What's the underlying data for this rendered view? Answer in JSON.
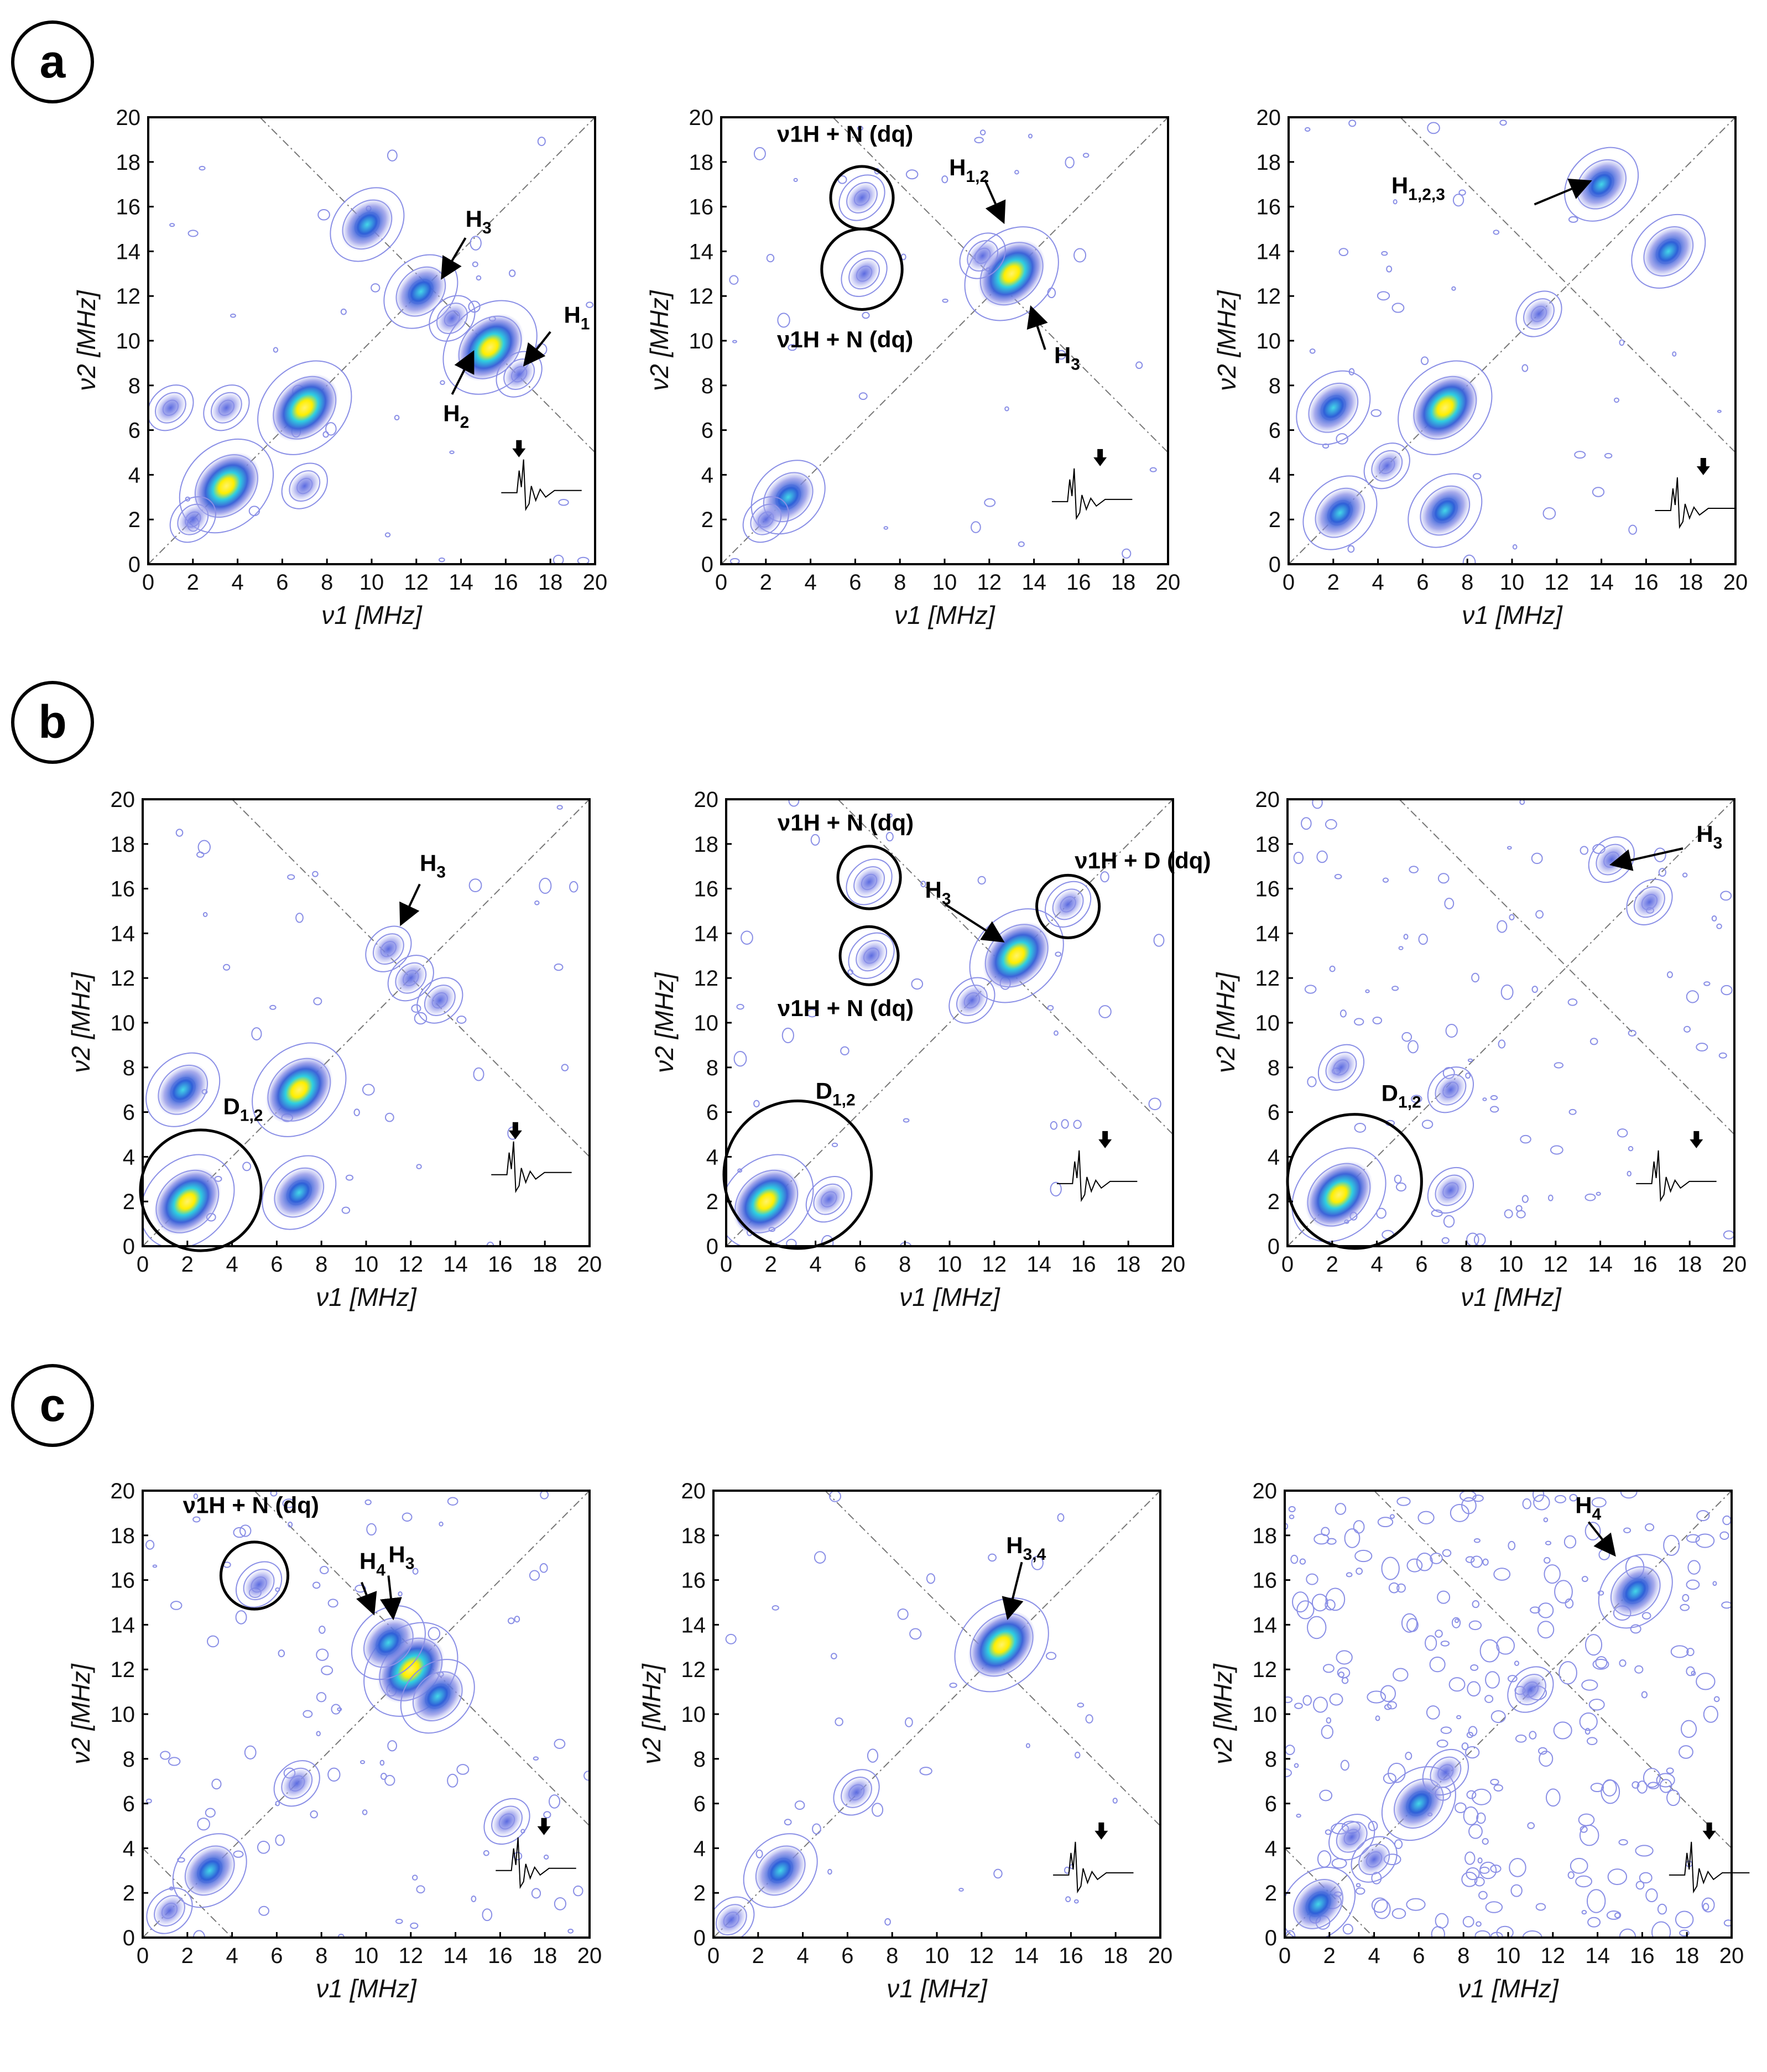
{
  "panel_labels": [
    "a",
    "b",
    "c"
  ],
  "colors": {
    "contour_outer": "#8a8fe6",
    "contour_mid": "#4f5fd6",
    "hot_cyan": "#2fd0e0",
    "hot_yellow": "#fff200",
    "axis": "#000000",
    "diag": "#666666"
  },
  "chart_data": [
    {
      "id": "a1",
      "type": "contour",
      "xlabel": "ν1 [MHz]",
      "ylabel": "ν2 [MHz]",
      "xlim": [
        0,
        20
      ],
      "ylim": [
        0,
        20
      ],
      "xticks": [
        "0",
        "2",
        "4",
        "6",
        "8",
        "10",
        "12",
        "14",
        "16",
        "18",
        "20"
      ],
      "yticks": [
        "0",
        "2",
        "4",
        "6",
        "8",
        "10",
        "12",
        "14",
        "16",
        "18",
        "20"
      ],
      "peaks": [
        {
          "x": 3.5,
          "y": 3.5,
          "i": 3
        },
        {
          "x": 7,
          "y": 7,
          "i": 3
        },
        {
          "x": 2,
          "y": 2,
          "i": 1
        },
        {
          "x": 3.5,
          "y": 7,
          "i": 1
        },
        {
          "x": 7,
          "y": 3.5,
          "i": 1
        },
        {
          "x": 1,
          "y": 7,
          "i": 1
        },
        {
          "x": 9.8,
          "y": 15.2,
          "i": 2
        },
        {
          "x": 12.2,
          "y": 12.2,
          "i": 2
        },
        {
          "x": 13.6,
          "y": 11,
          "i": 1
        },
        {
          "x": 15.3,
          "y": 9.7,
          "i": 3
        },
        {
          "x": 16.6,
          "y": 8.5,
          "i": 1
        }
      ],
      "annotations": [
        {
          "text": "H",
          "sub": "3",
          "x": 14.2,
          "y": 15.1
        },
        {
          "text": "H",
          "sub": "1",
          "x": 18.6,
          "y": 10.8
        },
        {
          "text": "H",
          "sub": "2",
          "x": 13.2,
          "y": 6.4
        }
      ]
    },
    {
      "id": "a2",
      "type": "contour",
      "xlabel": "ν1 [MHz]",
      "ylabel": "ν2 [MHz]",
      "xlim": [
        0,
        20
      ],
      "ylim": [
        0,
        20
      ],
      "xticks": [
        "0",
        "2",
        "4",
        "6",
        "8",
        "10",
        "12",
        "14",
        "16",
        "18",
        "20"
      ],
      "yticks": [
        "0",
        "2",
        "4",
        "6",
        "8",
        "10",
        "12",
        "14",
        "16",
        "18",
        "20"
      ],
      "peaks": [
        {
          "x": 13,
          "y": 13,
          "i": 3
        },
        {
          "x": 3,
          "y": 3,
          "i": 2
        },
        {
          "x": 2,
          "y": 2,
          "i": 1
        },
        {
          "x": 6.3,
          "y": 16.4,
          "i": 1
        },
        {
          "x": 6.4,
          "y": 13,
          "i": 1
        },
        {
          "x": 11.7,
          "y": 13.8,
          "i": 1
        }
      ],
      "annotations": [
        {
          "text": "ν1H + N (dq)",
          "sub": "",
          "x": 2.5,
          "y": 18.9
        },
        {
          "text": "H",
          "sub": "1,2",
          "x": 10.2,
          "y": 17.4
        },
        {
          "text": "ν1H + N (dq)",
          "sub": "",
          "x": 2.5,
          "y": 9.7
        },
        {
          "text": "H",
          "sub": "3",
          "x": 14.9,
          "y": 9.0
        }
      ]
    },
    {
      "id": "a3",
      "type": "contour",
      "xlabel": "ν1 [MHz]",
      "ylabel": "ν2 [MHz]",
      "xlim": [
        0,
        20
      ],
      "ylim": [
        0,
        20
      ],
      "xticks": [
        "0",
        "2",
        "4",
        "6",
        "8",
        "10",
        "12",
        "14",
        "16",
        "18",
        "20"
      ],
      "yticks": [
        "0",
        "2",
        "4",
        "6",
        "8",
        "10",
        "12",
        "14",
        "16",
        "18",
        "20"
      ],
      "peaks": [
        {
          "x": 7,
          "y": 7,
          "i": 3
        },
        {
          "x": 2,
          "y": 7,
          "i": 2
        },
        {
          "x": 2.3,
          "y": 2.3,
          "i": 2
        },
        {
          "x": 4.4,
          "y": 4.4,
          "i": 1
        },
        {
          "x": 7,
          "y": 2.4,
          "i": 2
        },
        {
          "x": 14,
          "y": 17,
          "i": 2
        },
        {
          "x": 17,
          "y": 14,
          "i": 2
        },
        {
          "x": 11.2,
          "y": 11.2,
          "i": 1
        }
      ],
      "annotations": [
        {
          "text": "H",
          "sub": "1,2,3",
          "x": 4.6,
          "y": 16.6
        }
      ]
    },
    {
      "id": "b1",
      "type": "contour",
      "xlabel": "ν1 [MHz]",
      "ylabel": "ν2 [MHz]",
      "xlim": [
        0,
        20
      ],
      "ylim": [
        0,
        20
      ],
      "xticks": [
        "0",
        "2",
        "4",
        "6",
        "8",
        "10",
        "12",
        "14",
        "16",
        "18",
        "20"
      ],
      "yticks": [
        "0",
        "2",
        "4",
        "6",
        "8",
        "10",
        "12",
        "14",
        "16",
        "18",
        "20"
      ],
      "peaks": [
        {
          "x": 2,
          "y": 2,
          "i": 3
        },
        {
          "x": 7,
          "y": 7,
          "i": 3
        },
        {
          "x": 1.8,
          "y": 7,
          "i": 2
        },
        {
          "x": 7,
          "y": 2.4,
          "i": 2
        },
        {
          "x": 12,
          "y": 12,
          "i": 1
        },
        {
          "x": 11,
          "y": 13.3,
          "i": 1
        },
        {
          "x": 13.3,
          "y": 11,
          "i": 1
        }
      ],
      "annotations": [
        {
          "text": "H",
          "sub": "3",
          "x": 12.4,
          "y": 16.8
        },
        {
          "text": "D",
          "sub": "1,2",
          "x": 3.6,
          "y": 5.9
        }
      ]
    },
    {
      "id": "b2",
      "type": "contour",
      "xlabel": "ν1 [MHz]",
      "ylabel": "ν2 [MHz]",
      "xlim": [
        0,
        20
      ],
      "ylim": [
        0,
        20
      ],
      "xticks": [
        "0",
        "2",
        "4",
        "6",
        "8",
        "10",
        "12",
        "14",
        "16",
        "18",
        "20"
      ],
      "yticks": [
        "0",
        "2",
        "4",
        "6",
        "8",
        "10",
        "12",
        "14",
        "16",
        "18",
        "20"
      ],
      "peaks": [
        {
          "x": 1.8,
          "y": 2,
          "i": 3
        },
        {
          "x": 13,
          "y": 13,
          "i": 3
        },
        {
          "x": 6.4,
          "y": 16.3,
          "i": 1
        },
        {
          "x": 6.5,
          "y": 13,
          "i": 1
        },
        {
          "x": 15.3,
          "y": 15.3,
          "i": 1
        },
        {
          "x": 11,
          "y": 11,
          "i": 1
        },
        {
          "x": 4.6,
          "y": 2.1,
          "i": 1
        }
      ],
      "annotations": [
        {
          "text": "ν1H + N (dq)",
          "sub": "",
          "x": 2.3,
          "y": 18.6
        },
        {
          "text": "ν1H + D (dq)",
          "sub": "",
          "x": 15.6,
          "y": 16.9
        },
        {
          "text": "H",
          "sub": "3",
          "x": 8.9,
          "y": 15.6
        },
        {
          "text": "ν1H + N (dq)",
          "sub": "",
          "x": 2.3,
          "y": 10.3
        },
        {
          "text": "D",
          "sub": "1,2",
          "x": 4.0,
          "y": 6.6
        }
      ]
    },
    {
      "id": "b3",
      "type": "contour",
      "xlabel": "ν1 [MHz]",
      "ylabel": "ν2 [MHz]",
      "xlim": [
        0,
        20
      ],
      "ylim": [
        0,
        20
      ],
      "xticks": [
        "0",
        "2",
        "4",
        "6",
        "8",
        "10",
        "12",
        "14",
        "16",
        "18",
        "20"
      ],
      "yticks": [
        "0",
        "2",
        "4",
        "6",
        "8",
        "10",
        "12",
        "14",
        "16",
        "18",
        "20"
      ],
      "peaks": [
        {
          "x": 2.3,
          "y": 2.3,
          "i": 3
        },
        {
          "x": 7.3,
          "y": 7,
          "i": 1
        },
        {
          "x": 7.3,
          "y": 2.5,
          "i": 1
        },
        {
          "x": 16.2,
          "y": 15.4,
          "i": 1
        },
        {
          "x": 14.5,
          "y": 17.3,
          "i": 1
        },
        {
          "x": 2.4,
          "y": 8,
          "i": 1
        }
      ],
      "annotations": [
        {
          "text": "H",
          "sub": "3",
          "x": 18.3,
          "y": 18.1
        },
        {
          "text": "D",
          "sub": "1,2",
          "x": 4.2,
          "y": 6.5
        }
      ]
    },
    {
      "id": "c1",
      "type": "contour",
      "xlabel": "ν1 [MHz]",
      "ylabel": "ν2 [MHz]",
      "xlim": [
        0,
        20
      ],
      "ylim": [
        0,
        20
      ],
      "xticks": [
        "0",
        "2",
        "4",
        "6",
        "8",
        "10",
        "12",
        "14",
        "16",
        "18",
        "20"
      ],
      "yticks": [
        "0",
        "2",
        "4",
        "6",
        "8",
        "10",
        "12",
        "14",
        "16",
        "18",
        "20"
      ],
      "peaks": [
        {
          "x": 12,
          "y": 12,
          "i": 3
        },
        {
          "x": 11,
          "y": 13.2,
          "i": 2
        },
        {
          "x": 13.2,
          "y": 10.8,
          "i": 2
        },
        {
          "x": 3,
          "y": 3,
          "i": 2
        },
        {
          "x": 6.9,
          "y": 6.9,
          "i": 1
        },
        {
          "x": 1.2,
          "y": 1.2,
          "i": 1
        },
        {
          "x": 5.2,
          "y": 15.8,
          "i": 1
        },
        {
          "x": 16.3,
          "y": 5.2,
          "i": 1
        }
      ],
      "annotations": [
        {
          "text": "ν1H + N (dq)",
          "sub": "",
          "x": 1.8,
          "y": 19.0
        },
        {
          "text": "H",
          "sub": "4",
          "x": 9.7,
          "y": 16.5
        },
        {
          "text": "H",
          "sub": "3",
          "x": 11.0,
          "y": 16.8
        }
      ]
    },
    {
      "id": "c2",
      "type": "contour",
      "xlabel": "ν1 [MHz]",
      "ylabel": "ν2 [MHz]",
      "xlim": [
        0,
        20
      ],
      "ylim": [
        0,
        20
      ],
      "xticks": [
        "0",
        "2",
        "4",
        "6",
        "8",
        "10",
        "12",
        "14",
        "16",
        "18",
        "20"
      ],
      "yticks": [
        "0",
        "2",
        "4",
        "6",
        "8",
        "10",
        "12",
        "14",
        "16",
        "18",
        "20"
      ],
      "peaks": [
        {
          "x": 12.9,
          "y": 13.1,
          "i": 3
        },
        {
          "x": 3,
          "y": 3,
          "i": 2
        },
        {
          "x": 0.8,
          "y": 0.8,
          "i": 1
        },
        {
          "x": 6.4,
          "y": 6.5,
          "i": 1
        }
      ],
      "annotations": [
        {
          "text": "H",
          "sub": "3,4",
          "x": 13.1,
          "y": 17.2
        }
      ]
    },
    {
      "id": "c3",
      "type": "contour",
      "xlabel": "ν1 [MHz]",
      "ylabel": "ν2 [MHz]",
      "xlim": [
        0,
        20
      ],
      "ylim": [
        0,
        20
      ],
      "xticks": [
        "0",
        "2",
        "4",
        "6",
        "8",
        "10",
        "12",
        "14",
        "16",
        "18",
        "20"
      ],
      "yticks": [
        "0",
        "2",
        "4",
        "6",
        "8",
        "10",
        "12",
        "14",
        "16",
        "18",
        "20"
      ],
      "peaks": [
        {
          "x": 15.7,
          "y": 15.5,
          "i": 2
        },
        {
          "x": 1.5,
          "y": 1.5,
          "i": 2
        },
        {
          "x": 6,
          "y": 6,
          "i": 2
        },
        {
          "x": 11,
          "y": 11.1,
          "i": 1
        },
        {
          "x": 4,
          "y": 3.5,
          "i": 1
        },
        {
          "x": 7.2,
          "y": 7.4,
          "i": 1
        },
        {
          "x": 3,
          "y": 4.5,
          "i": 1
        }
      ],
      "annotations": [
        {
          "text": "H",
          "sub": "4",
          "x": 13.0,
          "y": 19.0
        }
      ]
    }
  ]
}
